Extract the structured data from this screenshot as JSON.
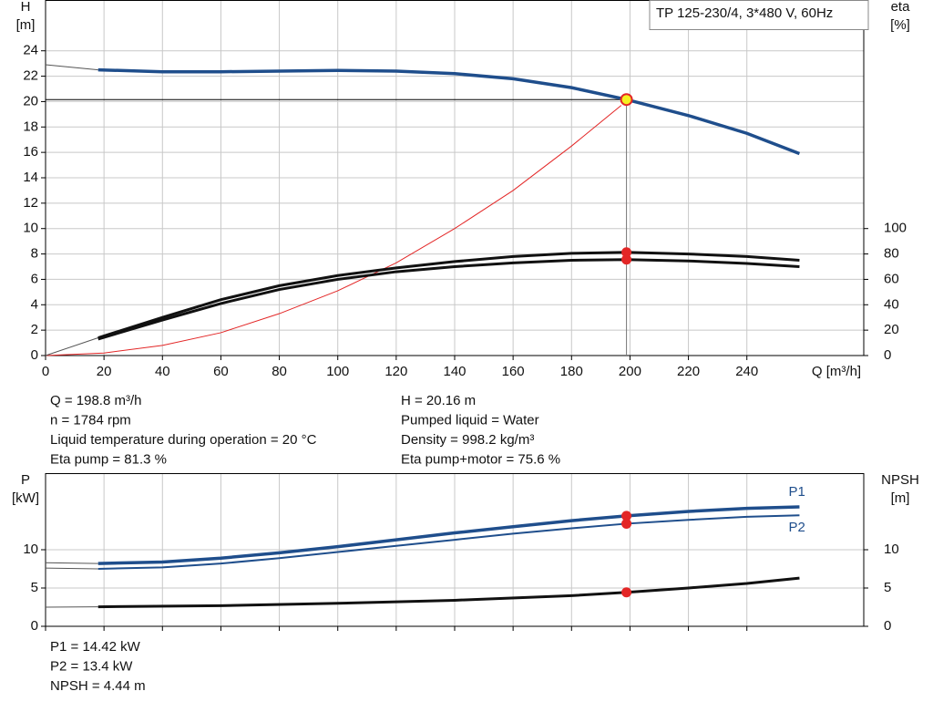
{
  "chart_data": [
    {
      "type": "line",
      "title": "TP 125-230/4, 3*480 V, 60Hz",
      "x_label": "Q [m³/h]",
      "y_label": [
        "H",
        "[m]"
      ],
      "y2_label": [
        "eta",
        "[%]"
      ],
      "xlim": [
        0,
        280
      ],
      "xticks": [
        0,
        20,
        40,
        60,
        80,
        100,
        120,
        140,
        160,
        180,
        200,
        220,
        240
      ],
      "ylim": [
        0,
        28
      ],
      "yticks": [
        0,
        2,
        4,
        6,
        8,
        10,
        12,
        14,
        16,
        18,
        20,
        22,
        24
      ],
      "y2lim": [
        0,
        280
      ],
      "y2ticks": [
        0,
        20,
        40,
        60,
        80,
        100
      ],
      "grid": true,
      "series": [
        {
          "color": "#555555",
          "width": 1,
          "x": [
            0,
            18
          ],
          "values": [
            22.9,
            22.5
          ]
        },
        {
          "color": "#1f4e8c",
          "width": 3.5,
          "x": [
            18,
            40,
            60,
            80,
            100,
            120,
            140,
            160,
            180,
            198.8,
            220,
            240,
            258
          ],
          "values": [
            22.5,
            22.35,
            22.35,
            22.4,
            22.45,
            22.4,
            22.2,
            21.8,
            21.1,
            20.16,
            18.9,
            17.5,
            15.9
          ]
        },
        {
          "color": "#e32626",
          "width": 1,
          "x": [
            0,
            20,
            40,
            60,
            80,
            100,
            120,
            140,
            160,
            180,
            197
          ],
          "values": [
            0,
            0.2,
            0.8,
            1.8,
            3.3,
            5.1,
            7.3,
            10,
            13,
            16.5,
            19.7
          ]
        },
        {
          "color": "#555555",
          "width": 1,
          "axis": "y2",
          "x": [
            0,
            18
          ],
          "values": [
            0,
            14
          ]
        },
        {
          "color": "#111111",
          "width": 3,
          "axis": "y2",
          "x": [
            18,
            40,
            60,
            80,
            100,
            120,
            140,
            160,
            180,
            198.8,
            220,
            240,
            258
          ],
          "values": [
            14,
            30,
            44,
            55,
            63,
            69,
            74,
            78,
            80.5,
            81.3,
            80,
            78,
            75
          ]
        },
        {
          "color": "#111111",
          "width": 3,
          "axis": "y2",
          "x": [
            18,
            40,
            60,
            80,
            100,
            120,
            140,
            160,
            180,
            198.8,
            220,
            240,
            258
          ],
          "values": [
            13,
            28,
            41,
            52,
            60,
            66,
            70,
            73,
            75,
            75.6,
            74.5,
            72.5,
            70
          ]
        }
      ],
      "points": [
        {
          "x": 198.8,
          "y": 20.16,
          "color": "#f5f020",
          "edge": "#e32626",
          "guide": true
        },
        {
          "x": 198.8,
          "y": 81.3,
          "axis": "y2",
          "color": "#e32626"
        },
        {
          "x": 198.8,
          "y": 75.6,
          "axis": "y2",
          "color": "#e32626"
        }
      ],
      "notes": [
        [
          "Q = 198.8 m³/h",
          "n = 1784 rpm",
          "Liquid temperature during operation = 20 °C",
          "Eta pump = 81.3 %"
        ],
        [
          "H = 20.16 m",
          "Pumped liquid = Water",
          "Density = 998.2 kg/m³",
          "Eta pump+motor = 75.6 %"
        ]
      ]
    },
    {
      "type": "line",
      "y_label": [
        "P",
        "[kW]"
      ],
      "y2_label": [
        "NPSH",
        "[m]"
      ],
      "xlim": [
        0,
        280
      ],
      "ylim": [
        0,
        20
      ],
      "yticks": [
        0,
        5,
        10
      ],
      "y2lim": [
        0,
        20
      ],
      "y2ticks": [
        0,
        5,
        10
      ],
      "grid": true,
      "series": [
        {
          "color": "#555555",
          "width": 1,
          "x": [
            0,
            18
          ],
          "values": [
            8.3,
            8.2
          ]
        },
        {
          "label": "P1",
          "color": "#1f4e8c",
          "width": 3.5,
          "x": [
            18,
            40,
            60,
            80,
            100,
            120,
            140,
            160,
            180,
            198.8,
            220,
            240,
            258
          ],
          "values": [
            8.2,
            8.4,
            8.9,
            9.6,
            10.4,
            11.3,
            12.2,
            13.0,
            13.8,
            14.42,
            15.0,
            15.4,
            15.6
          ]
        },
        {
          "color": "#555555",
          "width": 1,
          "x": [
            0,
            18
          ],
          "values": [
            7.6,
            7.5
          ]
        },
        {
          "label": "P2",
          "color": "#1f4e8c",
          "width": 2,
          "x": [
            18,
            40,
            60,
            80,
            100,
            120,
            140,
            160,
            180,
            198.8,
            220,
            240,
            258
          ],
          "values": [
            7.5,
            7.7,
            8.2,
            8.9,
            9.7,
            10.5,
            11.3,
            12.1,
            12.8,
            13.4,
            13.9,
            14.3,
            14.5
          ]
        },
        {
          "color": "#555555",
          "width": 1,
          "axis": "y2",
          "x": [
            0,
            18
          ],
          "values": [
            2.5,
            2.55
          ]
        },
        {
          "color": "#111111",
          "width": 3,
          "axis": "y2",
          "x": [
            18,
            60,
            100,
            140,
            180,
            198.8,
            220,
            240,
            258
          ],
          "values": [
            2.55,
            2.7,
            3.0,
            3.4,
            4.0,
            4.44,
            5.0,
            5.6,
            6.3
          ]
        }
      ],
      "points": [
        {
          "x": 198.8,
          "y": 14.42,
          "color": "#e32626"
        },
        {
          "x": 198.8,
          "y": 13.4,
          "color": "#e32626"
        },
        {
          "x": 198.8,
          "y": 4.44,
          "axis": "y2",
          "color": "#e32626"
        }
      ],
      "notes": [
        [
          "P1 = 14.42 kW",
          "P2 = 13.4 kW",
          "NPSH = 4.44 m"
        ]
      ]
    }
  ]
}
